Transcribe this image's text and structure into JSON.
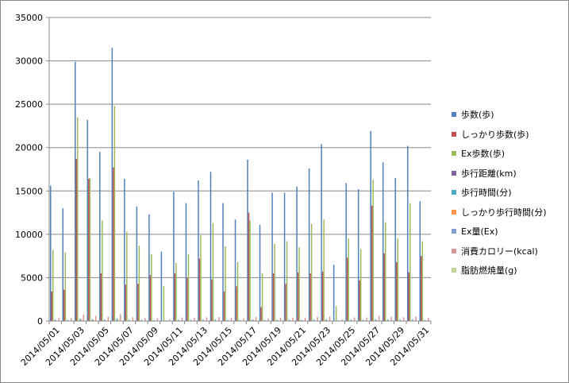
{
  "chart_data": {
    "type": "bar",
    "title": "",
    "xlabel": "",
    "ylabel": "",
    "ylim": [
      0,
      35000
    ],
    "yticks": [
      0,
      5000,
      10000,
      15000,
      20000,
      25000,
      30000,
      35000
    ],
    "grid": true,
    "legend_position": "right",
    "categories": [
      "2014/05/01",
      "2014/05/02",
      "2014/05/03",
      "2014/05/04",
      "2014/05/05",
      "2014/05/06",
      "2014/05/07",
      "2014/05/08",
      "2014/05/09",
      "2014/05/10",
      "2014/05/11",
      "2014/05/12",
      "2014/05/13",
      "2014/05/14",
      "2014/05/15",
      "2014/05/16",
      "2014/05/17",
      "2014/05/18",
      "2014/05/19",
      "2014/05/20",
      "2014/05/21",
      "2014/05/22",
      "2014/05/23",
      "2014/05/24",
      "2014/05/25",
      "2014/05/26",
      "2014/05/27",
      "2014/05/28",
      "2014/05/29",
      "2014/05/30",
      "2014/05/31"
    ],
    "tick_labels": [
      "2014/05/01",
      "2014/05/03",
      "2014/05/05",
      "2014/05/07",
      "2014/05/09",
      "2014/05/11",
      "2014/05/13",
      "2014/05/15",
      "2014/05/17",
      "2014/05/19",
      "2014/05/21",
      "2014/05/23",
      "2014/05/25",
      "2014/05/27",
      "2014/05/29",
      "2014/05/31"
    ],
    "series": [
      {
        "name": "歩数(歩)",
        "color": "#4F81BD",
        "values": [
          15600,
          13000,
          29900,
          23200,
          19500,
          31500,
          16400,
          13200,
          12300,
          8000,
          14900,
          13600,
          16200,
          17200,
          13600,
          11700,
          18600,
          11100,
          14800,
          14800,
          15500,
          17600,
          20400,
          6500,
          15900,
          15200,
          21900,
          18300,
          16500,
          20200,
          13800
        ]
      },
      {
        "name": "しっかり歩数(歩)",
        "color": "#C0504D",
        "values": [
          3400,
          3600,
          18700,
          16400,
          5500,
          17700,
          4200,
          4300,
          5300,
          0,
          5500,
          5000,
          7200,
          4800,
          3400,
          4000,
          12500,
          1600,
          5500,
          4300,
          5600,
          5500,
          5700,
          0,
          7300,
          4700,
          13300,
          7800,
          6800,
          5600,
          7500
        ]
      },
      {
        "name": "Ex歩数(歩)",
        "color": "#9BBB59",
        "values": [
          8200,
          7900,
          23500,
          16500,
          11600,
          24800,
          10300,
          8700,
          7700,
          4000,
          6700,
          7700,
          9900,
          11300,
          8600,
          6800,
          11600,
          5500,
          8900,
          9200,
          8500,
          11200,
          11700,
          1700,
          9500,
          8300,
          16300,
          11400,
          9500,
          13600,
          9200
        ]
      },
      {
        "name": "歩行距離(km)",
        "color": "#8064A2",
        "values": [
          11,
          9,
          21,
          16,
          14,
          22,
          12,
          9,
          9,
          6,
          11,
          10,
          11,
          12,
          10,
          8,
          13,
          8,
          10,
          10,
          11,
          12,
          14,
          5,
          11,
          11,
          15,
          13,
          12,
          14,
          10
        ]
      },
      {
        "name": "歩行時間(分)",
        "color": "#4BACC6",
        "values": [
          150,
          130,
          280,
          220,
          190,
          300,
          160,
          130,
          120,
          80,
          150,
          135,
          160,
          170,
          135,
          115,
          180,
          110,
          145,
          145,
          150,
          170,
          195,
          65,
          155,
          150,
          210,
          175,
          160,
          195,
          135
        ]
      },
      {
        "name": "しっかり歩行時間(分)",
        "color": "#F79646",
        "values": [
          30,
          30,
          160,
          140,
          50,
          150,
          35,
          35,
          45,
          0,
          50,
          45,
          60,
          40,
          30,
          35,
          105,
          15,
          45,
          35,
          45,
          45,
          50,
          0,
          60,
          40,
          110,
          65,
          55,
          45,
          60
        ]
      },
      {
        "name": "Ex量(Ex)",
        "color": "#7F9FCF",
        "values": [
          2,
          2,
          6,
          5,
          3,
          6,
          2,
          2,
          2,
          1,
          2,
          2,
          3,
          3,
          2,
          2,
          4,
          1,
          2,
          2,
          2,
          3,
          3,
          0,
          3,
          2,
          4,
          3,
          3,
          3,
          3
        ]
      },
      {
        "name": "消費カロリー(kcal)",
        "color": "#D99694",
        "values": [
          400,
          350,
          750,
          600,
          500,
          800,
          420,
          340,
          320,
          210,
          390,
          350,
          420,
          450,
          350,
          300,
          480,
          290,
          390,
          390,
          400,
          460,
          530,
          170,
          410,
          400,
          570,
          480,
          430,
          520,
          360
        ]
      },
      {
        "name": "脂肪燃焼量(g)",
        "color": "#C3D69B",
        "values": [
          30,
          25,
          55,
          45,
          37,
          60,
          31,
          25,
          24,
          15,
          29,
          26,
          31,
          33,
          26,
          22,
          36,
          21,
          29,
          29,
          30,
          34,
          39,
          12,
          30,
          29,
          42,
          36,
          32,
          38,
          27
        ]
      }
    ]
  }
}
